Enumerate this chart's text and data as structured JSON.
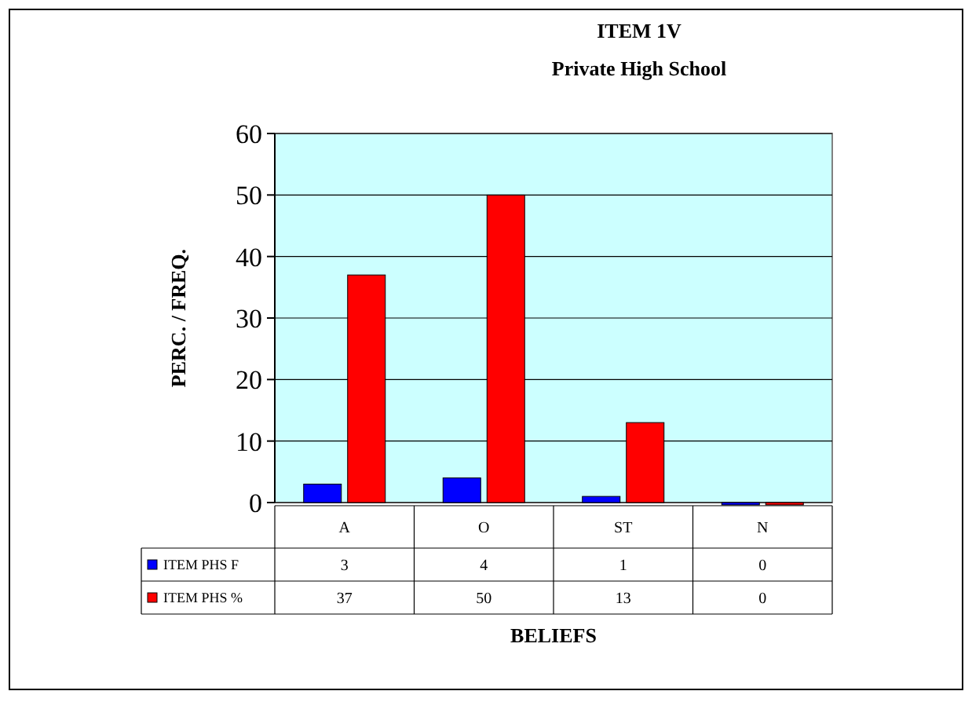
{
  "chart_data": {
    "type": "bar",
    "title": "ITEM 1V",
    "subtitle": "Private High School",
    "xlabel": "BELIEFS",
    "ylabel": "PERC. / FREQ.",
    "categories": [
      "A",
      "O",
      "ST",
      "N"
    ],
    "series": [
      {
        "name": "ITEM PHS F",
        "color": "#0000ff",
        "values": [
          3,
          4,
          1,
          0
        ]
      },
      {
        "name": "ITEM PHS %",
        "color": "#ff0000",
        "values": [
          37,
          50,
          13,
          0
        ]
      }
    ],
    "ylim": [
      0,
      60
    ],
    "yticks": [
      0,
      10,
      20,
      30,
      40,
      50,
      60
    ],
    "grid": "y",
    "legend": "bottom",
    "data_labels": true
  }
}
